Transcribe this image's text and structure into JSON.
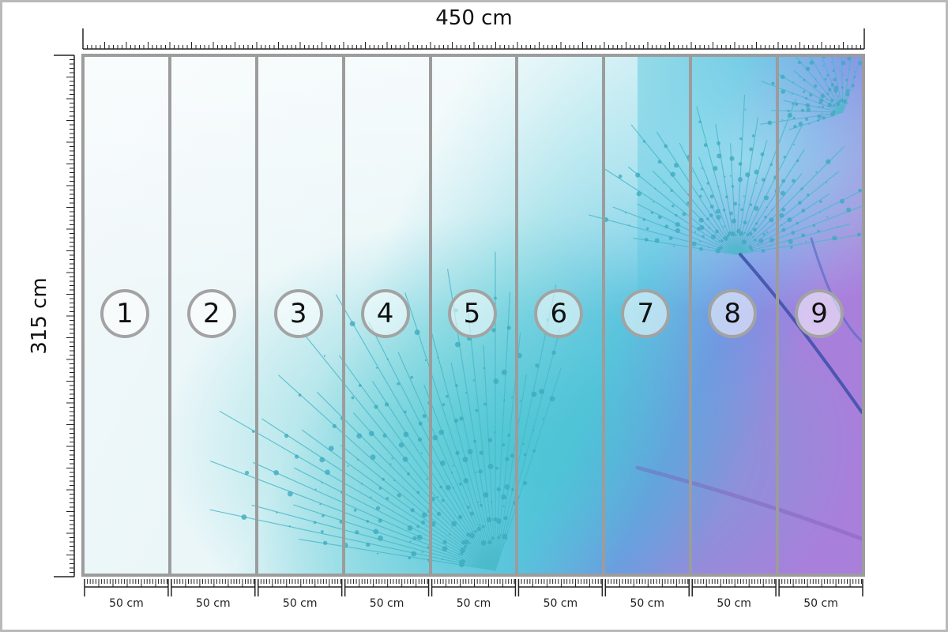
{
  "dimensions": {
    "width_label": "450 cm",
    "height_label": "315 cm"
  },
  "panels": [
    {
      "number": "1",
      "width": "50 cm"
    },
    {
      "number": "2",
      "width": "50 cm"
    },
    {
      "number": "3",
      "width": "50 cm"
    },
    {
      "number": "4",
      "width": "50 cm"
    },
    {
      "number": "5",
      "width": "50 cm"
    },
    {
      "number": "6",
      "width": "50 cm"
    },
    {
      "number": "7",
      "width": "50 cm"
    },
    {
      "number": "8",
      "width": "50 cm"
    },
    {
      "number": "9",
      "width": "50 cm"
    }
  ],
  "colors": {
    "divider": "#9c9c9c",
    "teal": "#2bb3c7",
    "blue": "#5d7fe0",
    "violet": "#9b6fd6"
  }
}
